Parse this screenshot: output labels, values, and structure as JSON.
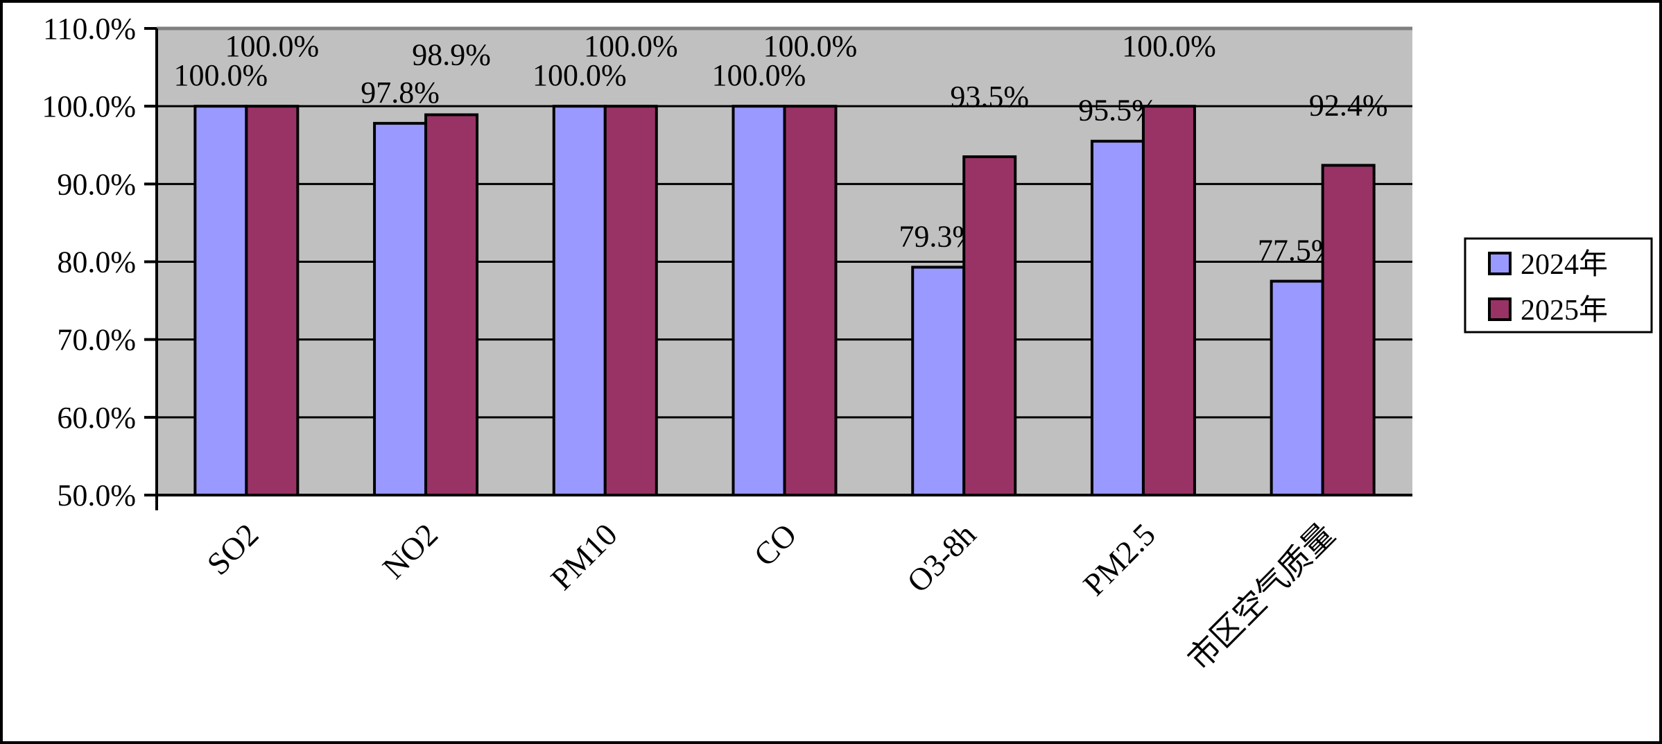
{
  "chart_data": {
    "type": "bar",
    "categories": [
      "SO2",
      "NO2",
      "PM10",
      "CO",
      "O3-8h",
      "PM2.5",
      "市区空气质量"
    ],
    "series": [
      {
        "name": "2024年",
        "values": [
          100.0,
          97.8,
          100.0,
          100.0,
          79.3,
          95.5,
          77.5
        ],
        "labels": [
          "100.0%",
          "97.8%",
          "100.0%",
          "100.0%",
          "79.3%",
          "95.5%",
          "77.5%"
        ],
        "color": "#9999FF"
      },
      {
        "name": "2025年",
        "values": [
          100.0,
          98.9,
          100.0,
          100.0,
          93.5,
          100.0,
          92.4
        ],
        "labels": [
          "100.0%",
          "98.9%",
          "100.0%",
          "100.0%",
          "93.5%",
          "100.0%",
          "92.4%"
        ],
        "color": "#993366"
      }
    ],
    "ylim": [
      50,
      110
    ],
    "yticks": [
      "50.0%",
      "60.0%",
      "70.0%",
      "80.0%",
      "90.0%",
      "100.0%",
      "110.0%"
    ],
    "grid": true,
    "plot_background": "#C0C0C0",
    "legend_position": "right",
    "title": "",
    "xlabel": "",
    "ylabel": ""
  }
}
